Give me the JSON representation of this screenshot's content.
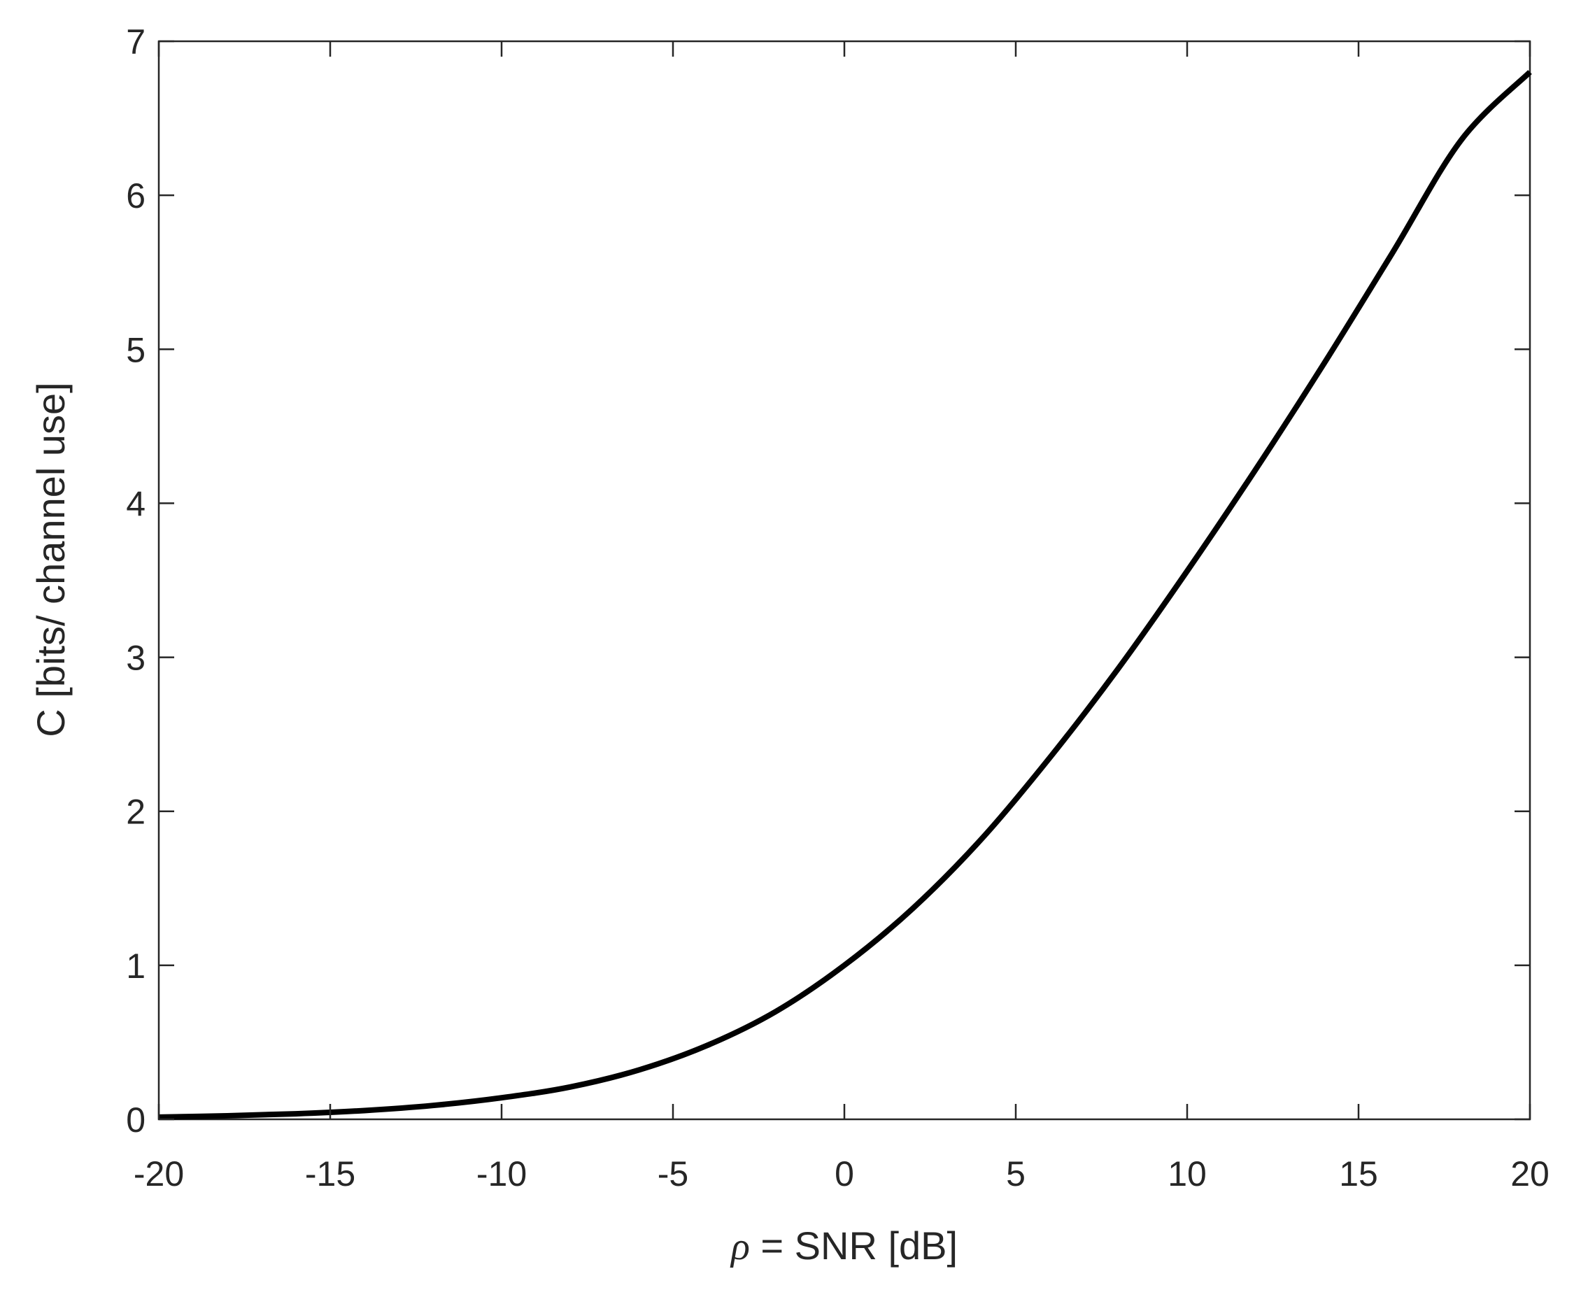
{
  "chart_data": {
    "type": "line",
    "title": "",
    "xlabel": {
      "symbol": "ρ",
      "text": " = SNR  [dB]"
    },
    "ylabel": "C  [bits/ channel use]",
    "xlim": [
      -20,
      20
    ],
    "ylim": [
      0,
      7
    ],
    "x_ticks": [
      -20,
      -15,
      -10,
      -5,
      0,
      5,
      10,
      15,
      20
    ],
    "y_ticks": [
      0,
      1,
      2,
      3,
      4,
      5,
      6,
      7
    ],
    "grid": false,
    "legend": "none",
    "series": [
      {
        "color": "#000000",
        "x": [
          -20,
          -18,
          -16,
          -14,
          -12,
          -10,
          -8,
          -6,
          -4,
          -2,
          0,
          2,
          4,
          6,
          8,
          10,
          12,
          14,
          16,
          18,
          20
        ],
        "y": [
          0.014,
          0.023,
          0.036,
          0.057,
          0.09,
          0.14,
          0.21,
          0.32,
          0.48,
          0.7,
          1.0,
          1.37,
          1.82,
          2.35,
          2.93,
          3.56,
          4.22,
          4.91,
          5.63,
          6.36,
          6.8
        ]
      }
    ]
  }
}
